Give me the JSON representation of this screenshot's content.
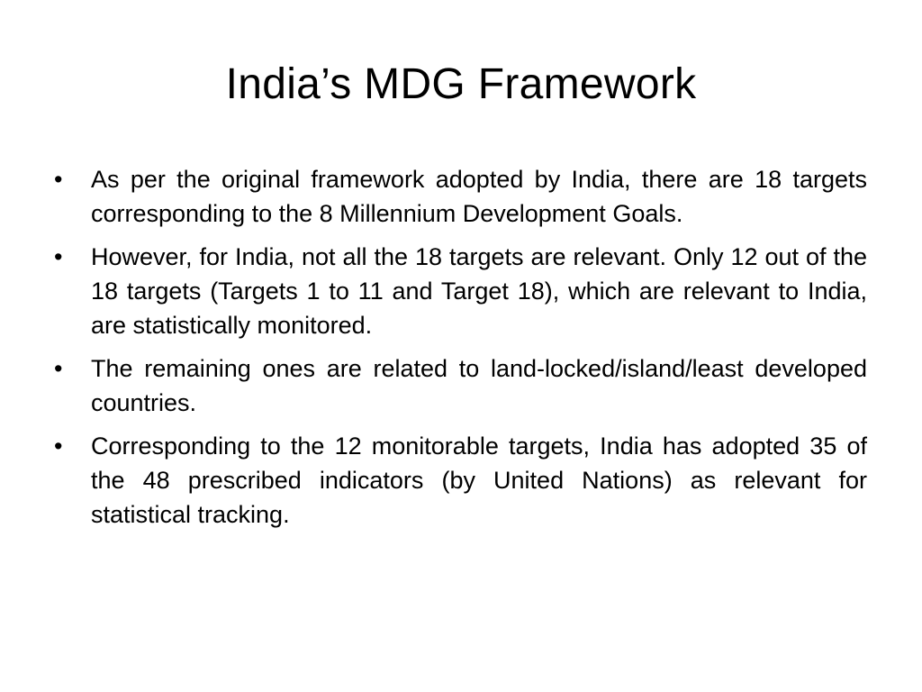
{
  "slide": {
    "title": "India’s MDG Framework",
    "bullet_marker": "•",
    "bullets": [
      {
        "text": "As per the original framework adopted by India, there are 18 targets corresponding to the 8 Millennium Development Goals."
      },
      {
        "text": "However, for India, not all the 18 targets are relevant. Only 12 out of the 18 targets (Targets 1 to 11 and Target 18), which are relevant to India, are statistically monitored."
      },
      {
        "text": "The remaining ones are related to land-locked/island/least developed countries."
      },
      {
        "text": " Corresponding to the 12 monitorable targets, India has adopted 35 of the 48 prescribed indicators (by United Nations) as relevant for statistical tracking."
      }
    ]
  }
}
